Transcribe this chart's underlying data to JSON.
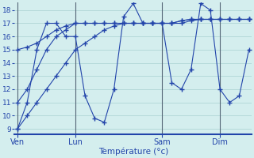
{
  "xlabel": "Température (°c)",
  "background_color": "#d4eeee",
  "grid_color": "#a8d0d0",
  "line_color": "#2244aa",
  "vline_color": "#556677",
  "bottom_color": "#2244aa",
  "yticks": [
    9,
    10,
    11,
    12,
    13,
    14,
    15,
    16,
    17,
    18
  ],
  "ylim": [
    8.6,
    18.6
  ],
  "xlim": [
    -0.3,
    24.3
  ],
  "day_positions": [
    0,
    6,
    15,
    21
  ],
  "day_labels": [
    "Ven",
    "Lun",
    "Sam",
    "Dim"
  ],
  "series": [
    {
      "x": [
        0,
        1,
        2,
        3,
        4,
        5,
        6,
        7,
        8,
        9,
        10,
        11,
        12,
        13,
        14,
        15,
        16,
        17,
        18,
        19,
        20,
        21,
        22,
        23,
        24
      ],
      "y": [
        9,
        10,
        11,
        12,
        13,
        14,
        15,
        15.5,
        16,
        16.5,
        16.8,
        17,
        17,
        17,
        17,
        17,
        17,
        17,
        17.2,
        17.3,
        17.3,
        17.3,
        17.3,
        17.3,
        17.3
      ]
    },
    {
      "x": [
        0,
        1,
        2,
        3,
        4,
        5,
        6,
        7,
        8,
        9,
        10,
        11,
        12,
        13,
        14,
        15,
        16,
        17,
        18,
        19,
        20,
        21,
        22,
        23,
        24
      ],
      "y": [
        15,
        15.2,
        15.5,
        16,
        16.5,
        16.8,
        17,
        17,
        17,
        17,
        17,
        17,
        17,
        17,
        17,
        17,
        17,
        17.2,
        17.3,
        17.3,
        17.3,
        17.3,
        17.3,
        17.3,
        17.3
      ]
    },
    {
      "x": [
        0,
        1,
        2,
        3,
        4,
        5,
        6,
        7,
        8,
        9,
        10,
        11,
        12,
        13,
        14,
        15,
        16,
        17,
        18,
        19,
        20,
        21,
        22,
        23,
        24
      ],
      "y": [
        11,
        12,
        13.5,
        15,
        16,
        16.5,
        17,
        17,
        17,
        17,
        17,
        17,
        17,
        17,
        17,
        17,
        17,
        17.2,
        17.3,
        17.3,
        17.3,
        17.3,
        17.3,
        17.3,
        17.3
      ]
    },
    {
      "x": [
        0,
        1,
        2,
        3,
        4,
        5,
        6,
        7,
        8,
        9,
        10,
        11,
        12,
        13,
        14,
        15,
        16,
        17,
        18,
        19,
        20,
        21,
        22,
        23,
        24
      ],
      "y": [
        9,
        11,
        15,
        17,
        17,
        16,
        16,
        11.5,
        9.8,
        9.5,
        12,
        17.5,
        18.5,
        17,
        17,
        17,
        12.5,
        12,
        13.5,
        18.5,
        18,
        12,
        11,
        11.5,
        15
      ]
    }
  ]
}
